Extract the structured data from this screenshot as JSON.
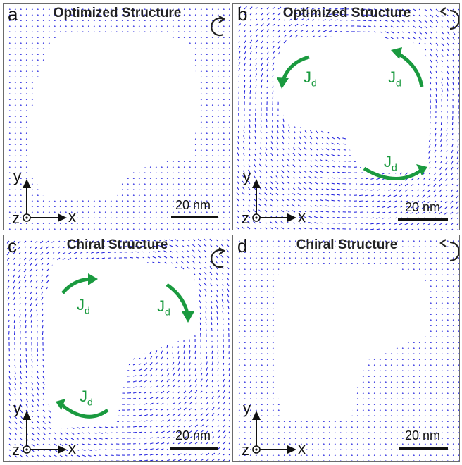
{
  "panels": [
    {
      "letter": "a",
      "title": "Optimized Structure",
      "rotation": "clockwise",
      "currents": []
    },
    {
      "letter": "b",
      "title": "Optimized Structure",
      "rotation": "counterclockwise",
      "currents": [
        {
          "label": "J",
          "sub": "d"
        },
        {
          "label": "J",
          "sub": "d"
        },
        {
          "label": "J",
          "sub": "d"
        }
      ]
    },
    {
      "letter": "c",
      "title": "Chiral Structure",
      "rotation": "clockwise",
      "currents": [
        {
          "label": "J",
          "sub": "d"
        },
        {
          "label": "J",
          "sub": "d"
        },
        {
          "label": "J",
          "sub": "d"
        }
      ]
    },
    {
      "letter": "d",
      "title": "Chiral Structure",
      "rotation": "counterclockwise",
      "currents": []
    }
  ],
  "axes": {
    "y": "y",
    "x": "x",
    "z": "z"
  },
  "scale_bar": "20 nm",
  "colors": {
    "field_arrows": "#1b1bdd",
    "current_arrows": "#1a9a3f",
    "text": "#111111"
  }
}
